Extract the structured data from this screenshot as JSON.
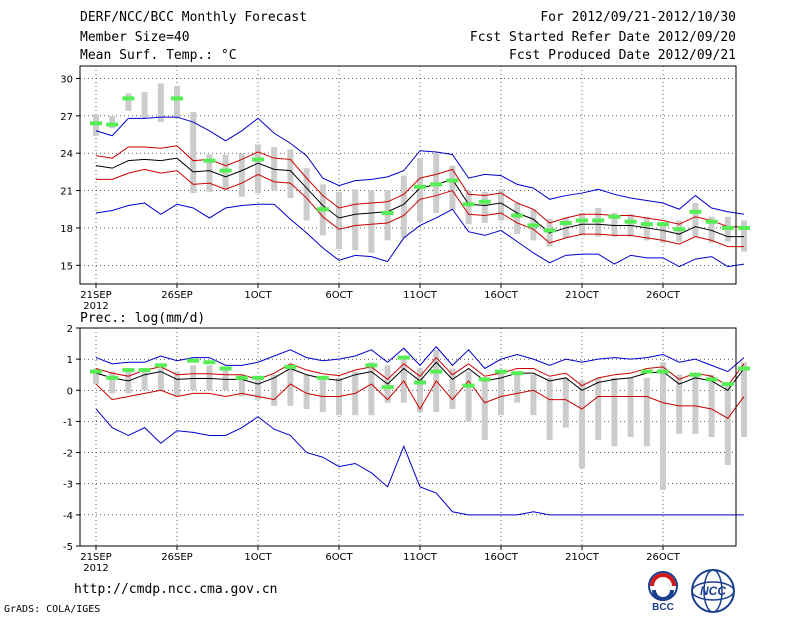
{
  "header": {
    "title": "DERF/NCC/BCC Monthly Forecast",
    "member_size": "Member Size=40",
    "variable": "Mean Surf. Temp.: °C",
    "period": "For 2012/09/21-2012/10/30",
    "fcst_started": "Fcst Started Refer Date 2012/09/20",
    "fcst_produced": "Fcst Produced Date 2012/09/21"
  },
  "footer": {
    "url": "http://cmdp.ncc.cma.gov.cn",
    "grads": "GrADS: COLA/IGES",
    "logo_bcc": "BCC",
    "logo_ncc": "NCC"
  },
  "colors": {
    "mean": "#000000",
    "envelope": "#cc0000",
    "extreme": "#0000cc",
    "bar": "#cccccc",
    "obs": "#55ee55"
  },
  "chart_data": [
    {
      "type": "line",
      "title": "Mean Surf. Temp.: °C",
      "ylim": [
        13.5,
        31
      ],
      "yticks": [
        15,
        18,
        21,
        24,
        27,
        30
      ],
      "xlabels": [
        {
          "day": 0,
          "label": "21SEP",
          "sub": "2012"
        },
        {
          "day": 5,
          "label": "26SEP"
        },
        {
          "day": 10,
          "label": "1OCT"
        },
        {
          "day": 15,
          "label": "6OCT"
        },
        {
          "day": 20,
          "label": "11OCT"
        },
        {
          "day": 25,
          "label": "16OCT"
        },
        {
          "day": 30,
          "label": "21OCT"
        },
        {
          "day": 35,
          "label": "26OCT"
        }
      ],
      "ensemble_mean": [
        23.0,
        22.8,
        23.4,
        23.5,
        23.4,
        23.6,
        22.5,
        22.6,
        22.1,
        22.6,
        23.2,
        22.7,
        22.6,
        21.2,
        19.8,
        18.8,
        19.1,
        19.2,
        19.3,
        19.9,
        21.2,
        21.5,
        21.9,
        19.9,
        19.8,
        20.0,
        19.2,
        18.7,
        17.6,
        18.0,
        18.3,
        18.3,
        18.2,
        18.2,
        18.0,
        17.8,
        17.5,
        18.1,
        17.8,
        17.3,
        17.3
      ],
      "upper_envelope": [
        23.8,
        23.6,
        24.5,
        24.5,
        24.4,
        24.6,
        23.4,
        23.5,
        23.0,
        23.5,
        24.1,
        23.6,
        23.5,
        22.0,
        20.6,
        19.6,
        19.9,
        20.0,
        20.1,
        20.7,
        22.0,
        22.3,
        22.7,
        20.7,
        20.6,
        20.8,
        20.0,
        19.5,
        18.4,
        18.8,
        19.1,
        19.1,
        19.0,
        19.0,
        18.8,
        18.6,
        18.3,
        18.9,
        18.6,
        18.1,
        18.1
      ],
      "lower_envelope": [
        21.9,
        21.9,
        22.4,
        22.7,
        22.4,
        22.6,
        21.5,
        21.6,
        21.1,
        21.6,
        22.3,
        21.7,
        21.6,
        20.4,
        18.9,
        17.9,
        18.2,
        18.3,
        18.4,
        19.0,
        20.3,
        20.6,
        21.0,
        19.1,
        19.0,
        19.2,
        18.4,
        17.9,
        16.8,
        17.2,
        17.5,
        17.5,
        17.4,
        17.4,
        17.2,
        17.0,
        16.7,
        17.3,
        17.0,
        16.5,
        16.5
      ],
      "maximum": [
        25.8,
        25.4,
        26.8,
        26.8,
        26.9,
        26.9,
        26.5,
        25.8,
        25.0,
        25.8,
        26.8,
        25.6,
        24.8,
        23.8,
        22.0,
        21.4,
        21.8,
        21.9,
        22.1,
        22.6,
        24.2,
        24.1,
        23.9,
        22.0,
        22.3,
        22.2,
        21.5,
        21.2,
        20.3,
        20.6,
        20.8,
        21.1,
        20.7,
        20.4,
        20.2,
        20.0,
        19.5,
        20.6,
        19.6,
        19.3,
        19.1
      ],
      "minimum": [
        19.2,
        19.4,
        19.8,
        20.0,
        19.1,
        19.9,
        19.6,
        18.8,
        19.6,
        19.8,
        19.9,
        19.9,
        18.7,
        17.6,
        16.4,
        15.4,
        15.8,
        15.7,
        15.3,
        17.2,
        18.2,
        18.8,
        19.5,
        17.7,
        17.4,
        17.8,
        16.9,
        16.0,
        15.2,
        15.8,
        15.9,
        15.9,
        15.1,
        15.8,
        15.6,
        15.6,
        14.9,
        15.5,
        15.7,
        14.9,
        15.1
      ],
      "bar_low": [
        25.4,
        26.0,
        27.4,
        26.8,
        26.5,
        26.8,
        20.8,
        20.9,
        21.0,
        20.5,
        20.8,
        21.0,
        20.4,
        18.6,
        17.4,
        16.3,
        16.2,
        16.0,
        17.0,
        17.2,
        18.5,
        19.2,
        19.5,
        18.3,
        18.4,
        18.6,
        17.5,
        17.0,
        16.5,
        17.2,
        17.4,
        17.3,
        17.3,
        17.3,
        17.0,
        16.8,
        16.9,
        17.3,
        16.8,
        16.9,
        16.1
      ],
      "bar_high": [
        27.1,
        27.0,
        28.8,
        28.9,
        29.6,
        29.4,
        27.3,
        23.9,
        23.9,
        24.0,
        24.7,
        24.5,
        24.3,
        22.8,
        21.5,
        20.9,
        21.1,
        21.0,
        21.0,
        22.2,
        23.6,
        24.0,
        23.0,
        21.0,
        20.9,
        21.1,
        20.0,
        19.5,
        18.7,
        18.8,
        19.2,
        19.6,
        19.2,
        19.1,
        18.9,
        18.4,
        18.6,
        20.0,
        18.9,
        18.9,
        18.6
      ],
      "observation": [
        26.4,
        26.3,
        28.4,
        null,
        null,
        28.4,
        null,
        23.4,
        22.6,
        null,
        23.5,
        null,
        null,
        null,
        19.5,
        null,
        null,
        null,
        19.2,
        null,
        21.3,
        21.5,
        21.8,
        19.9,
        20.1,
        null,
        19.0,
        18.2,
        17.8,
        18.4,
        18.6,
        18.6,
        18.9,
        18.5,
        18.3,
        18.3,
        17.9,
        19.3,
        18.5,
        18.0,
        18.0
      ]
    },
    {
      "type": "line",
      "title": "Prec.: log(mm/d)",
      "ylim": [
        -5,
        2
      ],
      "yticks": [
        -5,
        -4,
        -3,
        -2,
        -1,
        0,
        1,
        2
      ],
      "xlabels": [
        {
          "day": 0,
          "label": "21SEP",
          "sub": "2012"
        },
        {
          "day": 5,
          "label": "26SEP"
        },
        {
          "day": 10,
          "label": "1OCT"
        },
        {
          "day": 15,
          "label": "6OCT"
        },
        {
          "day": 20,
          "label": "11OCT"
        },
        {
          "day": 25,
          "label": "16OCT"
        },
        {
          "day": 30,
          "label": "21OCT"
        },
        {
          "day": 35,
          "label": "26OCT"
        }
      ],
      "ensemble_mean": [
        0.55,
        0.4,
        0.3,
        0.5,
        0.6,
        0.35,
        0.38,
        0.38,
        0.35,
        0.35,
        0.2,
        0.4,
        0.7,
        0.5,
        0.38,
        0.32,
        0.5,
        0.6,
        0.2,
        0.7,
        0.3,
        0.9,
        0.35,
        0.7,
        0.3,
        0.4,
        0.55,
        0.55,
        0.3,
        0.4,
        0.0,
        0.25,
        0.35,
        0.4,
        0.55,
        0.6,
        0.2,
        0.4,
        0.3,
        0.0,
        0.7
      ],
      "upper_envelope": [
        0.7,
        0.55,
        0.45,
        0.65,
        0.75,
        0.5,
        0.53,
        0.53,
        0.5,
        0.5,
        0.35,
        0.55,
        0.85,
        0.65,
        0.53,
        0.47,
        0.65,
        0.75,
        0.35,
        0.85,
        0.45,
        1.05,
        0.5,
        0.85,
        0.45,
        0.55,
        0.7,
        0.7,
        0.45,
        0.55,
        0.15,
        0.4,
        0.5,
        0.55,
        0.7,
        0.75,
        0.35,
        0.55,
        0.45,
        0.15,
        0.85
      ],
      "lower_envelope": [
        0.2,
        -0.3,
        -0.2,
        -0.1,
        0.0,
        -0.2,
        -0.1,
        -0.1,
        -0.2,
        -0.1,
        -0.2,
        -0.3,
        0.2,
        -0.1,
        -0.2,
        -0.2,
        -0.1,
        0.2,
        -0.3,
        0.3,
        -0.6,
        0.3,
        -0.3,
        0.3,
        -0.4,
        -0.2,
        -0.1,
        0.0,
        -0.3,
        -0.3,
        -0.6,
        -0.2,
        -0.2,
        -0.2,
        -0.2,
        -0.4,
        -0.5,
        -0.5,
        -0.6,
        -0.9,
        -0.2
      ],
      "maximum": [
        1.05,
        0.85,
        0.9,
        0.9,
        1.1,
        0.95,
        1.05,
        1.05,
        0.8,
        0.8,
        0.9,
        1.1,
        1.3,
        1.05,
        0.95,
        1.0,
        1.1,
        1.3,
        0.9,
        1.35,
        0.8,
        1.4,
        0.8,
        1.3,
        0.7,
        1.0,
        1.15,
        1.0,
        0.8,
        1.0,
        0.9,
        1.0,
        1.05,
        1.0,
        1.05,
        1.15,
        0.9,
        1.0,
        0.8,
        0.6,
        1.05
      ],
      "minimum": [
        -0.6,
        -1.2,
        -1.45,
        -1.2,
        -1.7,
        -1.3,
        -1.35,
        -1.45,
        -1.45,
        -1.2,
        -0.85,
        -1.25,
        -1.45,
        -2.0,
        -2.15,
        -2.45,
        -2.35,
        -2.65,
        -3.1,
        -1.8,
        -3.1,
        -3.3,
        -3.9,
        -4.0,
        -4.0,
        -4.0,
        -4.0,
        -3.9,
        -4.0,
        -4.0,
        -4.0,
        -4.0,
        -4.0,
        -4.0,
        -4.0,
        -4.0,
        -4.0,
        -4.0,
        -4.0,
        -4.0,
        -4.0
      ],
      "bar_low": [
        0.2,
        -0.1,
        -0.1,
        0.0,
        0.0,
        -0.2,
        0.0,
        0.0,
        0.0,
        -0.2,
        -0.3,
        -0.5,
        -0.5,
        -0.6,
        -0.7,
        -0.8,
        -0.8,
        -0.8,
        -0.4,
        -0.4,
        -0.7,
        -0.7,
        -0.6,
        -1.0,
        -1.6,
        -0.8,
        -0.4,
        -0.8,
        -1.6,
        -1.2,
        -2.5,
        -1.6,
        -1.8,
        -1.5,
        -1.8,
        -3.2,
        -1.4,
        -1.4,
        -1.5,
        -2.4,
        -1.5
      ],
      "bar_high": [
        0.7,
        0.6,
        0.6,
        0.7,
        0.7,
        0.6,
        0.8,
        0.8,
        0.7,
        0.5,
        0.4,
        0.5,
        0.7,
        0.5,
        0.4,
        0.4,
        0.6,
        0.9,
        0.8,
        1.1,
        0.7,
        1.3,
        0.7,
        0.6,
        0.3,
        0.6,
        0.6,
        0.5,
        0.4,
        0.4,
        0.3,
        0.4,
        0.4,
        0.4,
        0.4,
        0.9,
        0.5,
        0.5,
        0.5,
        0.2,
        0.9
      ],
      "observation": [
        0.6,
        0.4,
        0.65,
        0.65,
        0.8,
        null,
        0.95,
        0.9,
        0.7,
        0.4,
        0.4,
        null,
        0.75,
        null,
        0.4,
        null,
        null,
        0.8,
        0.1,
        1.05,
        0.25,
        0.6,
        null,
        0.15,
        0.35,
        0.6,
        0.55,
        null,
        null,
        null,
        null,
        null,
        null,
        null,
        0.6,
        0.6,
        null,
        0.5,
        0.35,
        0.2,
        0.7
      ]
    }
  ]
}
